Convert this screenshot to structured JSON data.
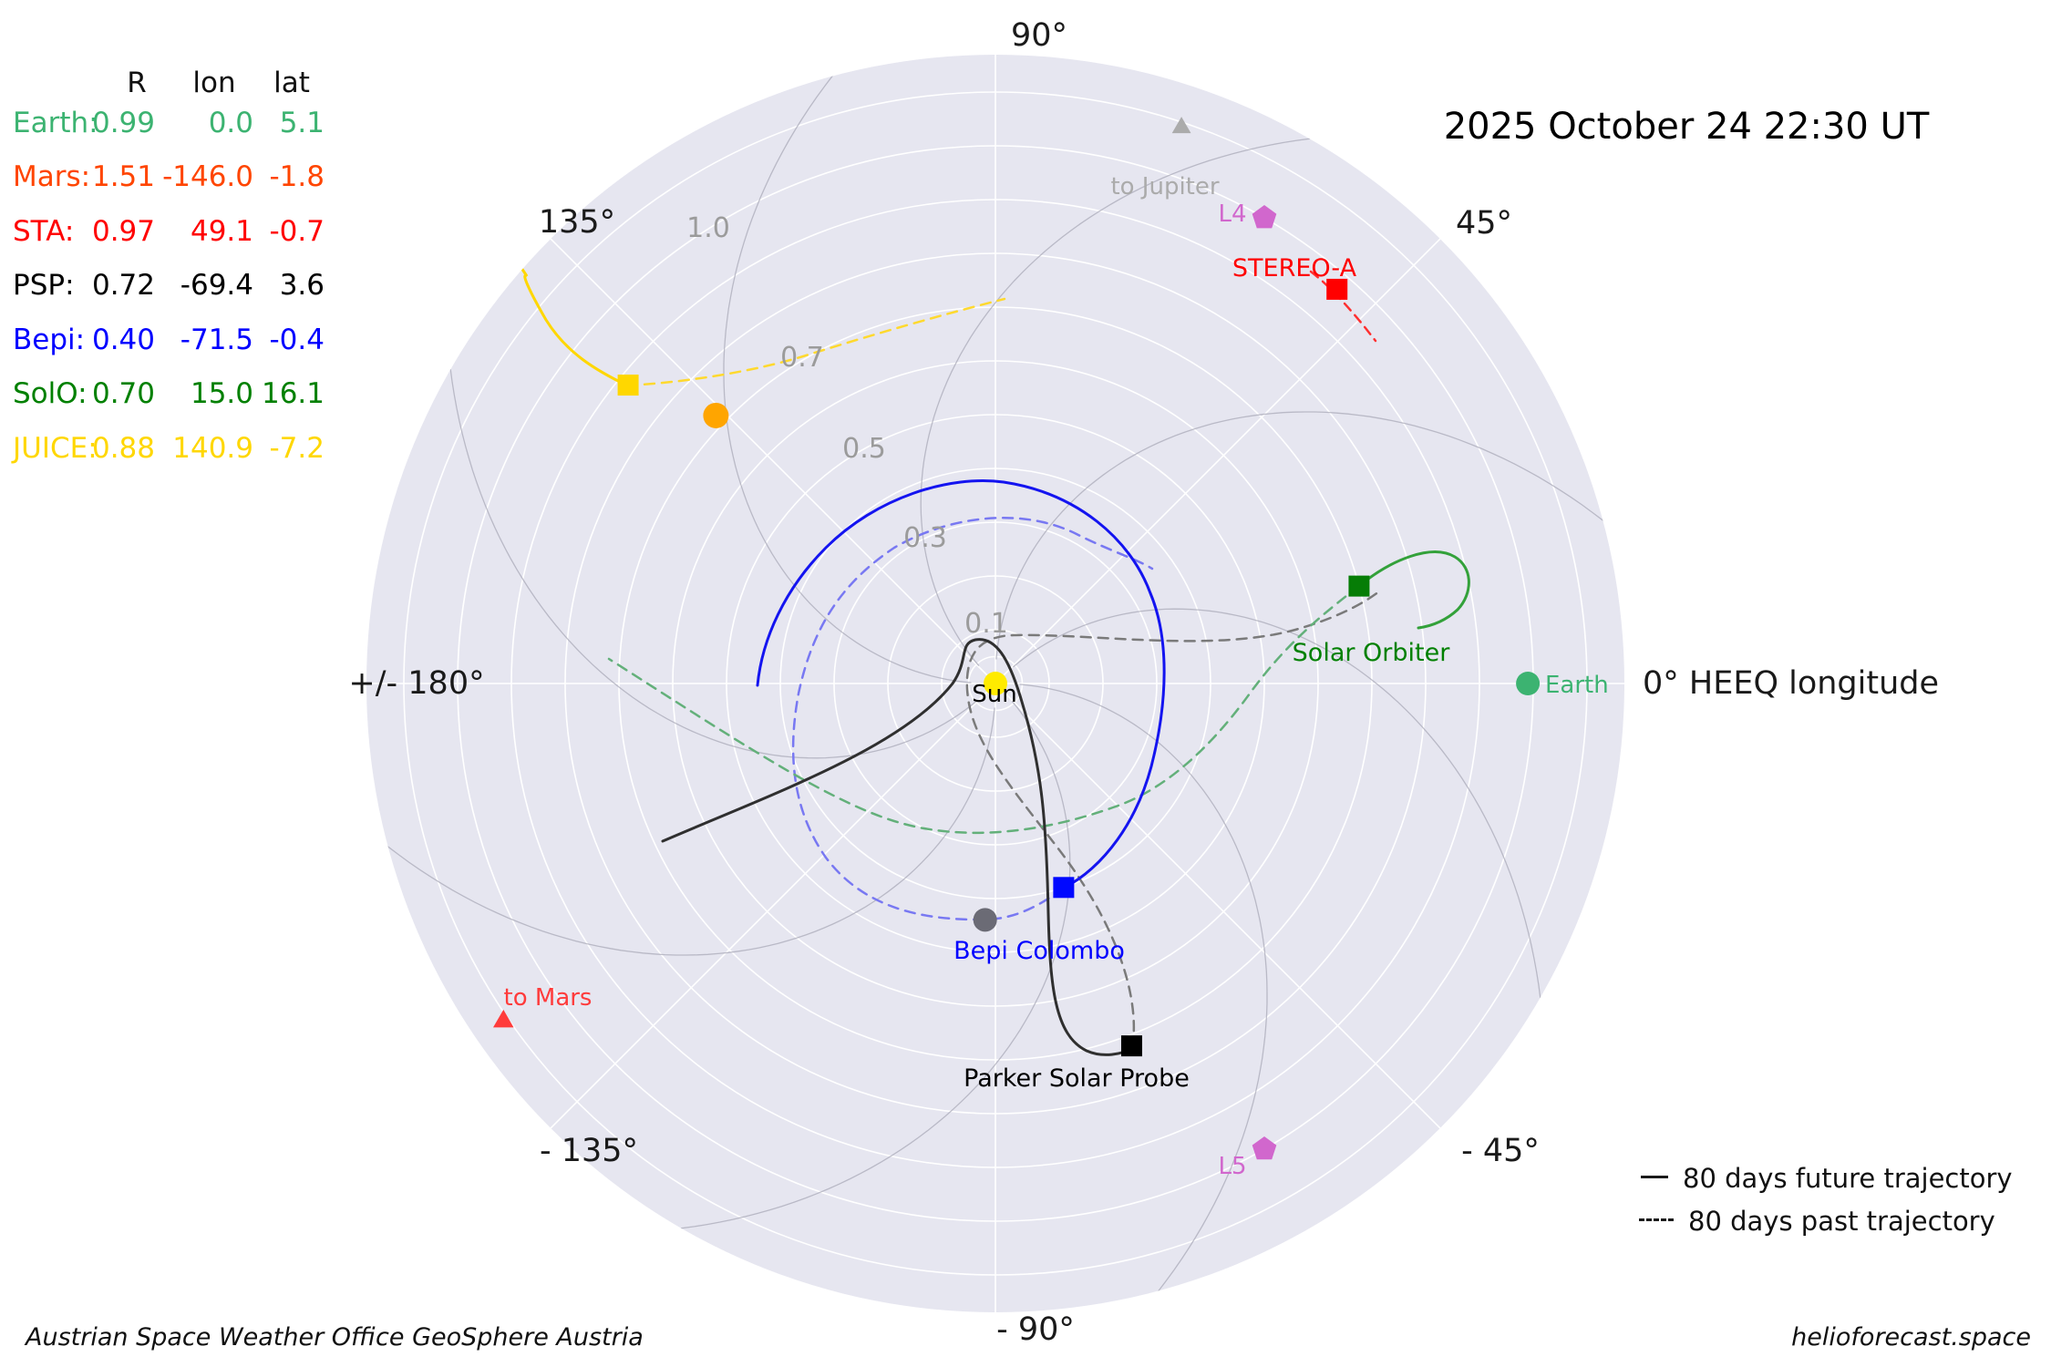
{
  "header": {
    "date": "2025 October 24  22:30 UT"
  },
  "table": {
    "columns": [
      "R",
      "lon",
      "lat"
    ],
    "rows": [
      {
        "label": "Earth:",
        "R": "0.99",
        "lon": "0.0",
        "lat": "5.1",
        "color": "#3cb371"
      },
      {
        "label": "Mars:",
        "R": "1.51",
        "lon": "-146.0",
        "lat": "-1.8",
        "color": "#ff4500"
      },
      {
        "label": "STA:",
        "R": "0.97",
        "lon": "49.1",
        "lat": "-0.7",
        "color": "#ff0000"
      },
      {
        "label": "PSP:",
        "R": "0.72",
        "lon": "-69.4",
        "lat": "3.6",
        "color": "#000000"
      },
      {
        "label": "Bepi:",
        "R": "0.40",
        "lon": "-71.5",
        "lat": "-0.4",
        "color": "#0000ff"
      },
      {
        "label": "SolO:",
        "R": "0.70",
        "lon": "15.0",
        "lat": "16.1",
        "color": "#008000"
      },
      {
        "label": "JUICE:",
        "R": "0.88",
        "lon": "140.9",
        "lat": "-7.2",
        "color": "#ffd700"
      }
    ]
  },
  "chart_data": {
    "type": "polar_scatter",
    "title": "2025 October 24  22:30 UT",
    "frame": "HEEQ",
    "r_unit": "AU",
    "r_max": 1.17,
    "r_ticks": [
      0.1,
      0.3,
      0.5,
      0.7,
      1.0
    ],
    "r_tick_labels": [
      "0.1",
      "0.3",
      "0.5",
      "0.7",
      "1.0"
    ],
    "theta_labels": [
      "90°",
      "45°",
      "0° HEEQ longitude",
      "- 45°",
      "- 90°",
      "- 135°",
      "+/- 180°",
      "135°"
    ],
    "grid": true,
    "background_color": "#e6e6f0",
    "bodies": [
      {
        "name": "Sun",
        "r": 0.0,
        "lon": 0.0,
        "marker": "circle",
        "size": 13,
        "color": "#ffeb00",
        "label": "Sun",
        "label_color": "#000000"
      },
      {
        "name": "Mercury",
        "r": 0.44,
        "lon": -92.5,
        "marker": "circle",
        "size": 13,
        "color": "#6b6b75",
        "label": "",
        "label_color": ""
      },
      {
        "name": "Venus",
        "r": 0.72,
        "lon": 136.2,
        "marker": "circle",
        "size": 14,
        "color": "#ffa500",
        "label": "",
        "label_color": ""
      },
      {
        "name": "Earth",
        "r": 0.99,
        "lon": 0.0,
        "marker": "circle",
        "size": 13,
        "color": "#3cb371",
        "label": "Earth",
        "label_color": "#3cb371"
      },
      {
        "name": "STEREO-A",
        "r": 0.97,
        "lon": 49.1,
        "marker": "square",
        "size": 23,
        "color": "#ff0000",
        "label": "STEREO-A",
        "label_color": "#ff0000"
      },
      {
        "name": "Solar Orbiter",
        "r": 0.7,
        "lon": 15.0,
        "marker": "square",
        "size": 23,
        "color": "#067d06",
        "label": "Solar Orbiter",
        "label_color": "#008000"
      },
      {
        "name": "Parker Solar Probe",
        "r": 0.72,
        "lon": -69.4,
        "marker": "square",
        "size": 23,
        "color": "#000000",
        "label": "Parker Solar Probe",
        "label_color": "#000000"
      },
      {
        "name": "Bepi Colombo",
        "r": 0.4,
        "lon": -71.5,
        "marker": "square",
        "size": 23,
        "color": "#0008ff",
        "label": "Bepi Colombo",
        "label_color": "#0000ff"
      },
      {
        "name": "JUICE",
        "r": 0.88,
        "lon": 140.9,
        "marker": "square",
        "size": 23,
        "color": "#ffd700",
        "label": "",
        "label_color": "#ffd700"
      },
      {
        "name": "L4",
        "r": 1.0,
        "lon": 60.0,
        "marker": "pentagon",
        "size": 14,
        "color": "#d167cd",
        "label": "L4",
        "label_color": "#d167cd"
      },
      {
        "name": "L5",
        "r": 1.0,
        "lon": -60.0,
        "marker": "pentagon",
        "size": 14,
        "color": "#d167cd",
        "label": "L5",
        "label_color": "#d167cd"
      },
      {
        "name": "to Jupiter",
        "r": 1.09,
        "lon": 71.5,
        "marker": "triangle",
        "size": 12,
        "color": "#ababab",
        "label": "to Jupiter",
        "label_color": "#ababab"
      },
      {
        "name": "to Mars",
        "r": 1.11,
        "lon": -145.5,
        "marker": "triangle",
        "size": 13,
        "color": "#ff3b3b",
        "label": "to Mars",
        "label_color": "#ff3b3b"
      }
    ],
    "legend": [
      {
        "style": "solid",
        "label": "80 days future trajectory"
      },
      {
        "style": "dashed",
        "label": "80 days past trajectory"
      }
    ]
  },
  "footer": {
    "left": "Austrian Space Weather Office   GeoSphere Austria",
    "right": "helioforecast.space"
  }
}
